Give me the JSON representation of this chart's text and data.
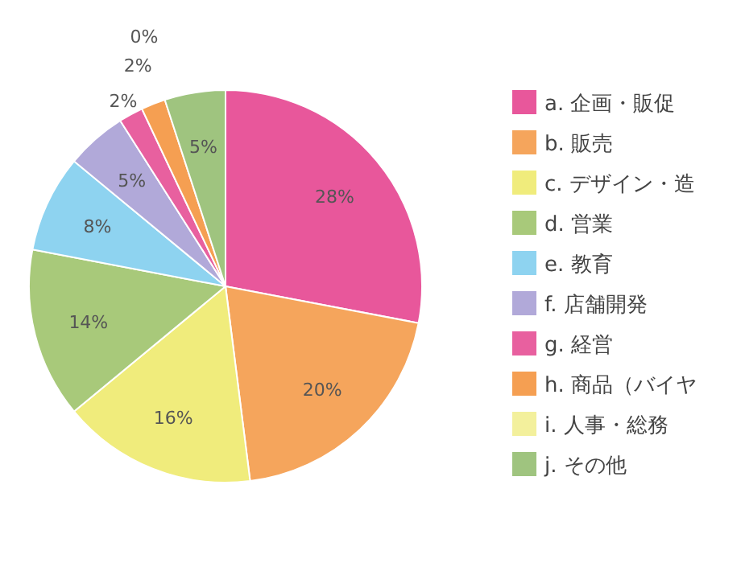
{
  "chart_data": {
    "type": "pie",
    "categories": [
      "a. 企画・販促",
      "b. 販売",
      "c. デザイン・造",
      "d. 営業",
      "e. 教育",
      "f. 店舗開発",
      "g. 経営",
      "h. 商品（バイヤ",
      "i. 人事・総務",
      "j. その他"
    ],
    "values": [
      28,
      20,
      16,
      14,
      8,
      5,
      2,
      2,
      0,
      5
    ],
    "colors": [
      "#e8579b",
      "#f5a55c",
      "#f0ec7c",
      "#a8c97a",
      "#8ed3f0",
      "#b1a9d9",
      "#e8609f",
      "#f59f52",
      "#f3f09c",
      "#9fc47f"
    ],
    "value_labels": [
      "28%",
      "20%",
      "16%",
      "14%",
      "8%",
      "5%",
      "2%",
      "2%",
      "0%",
      "5%"
    ],
    "legend": "right"
  }
}
